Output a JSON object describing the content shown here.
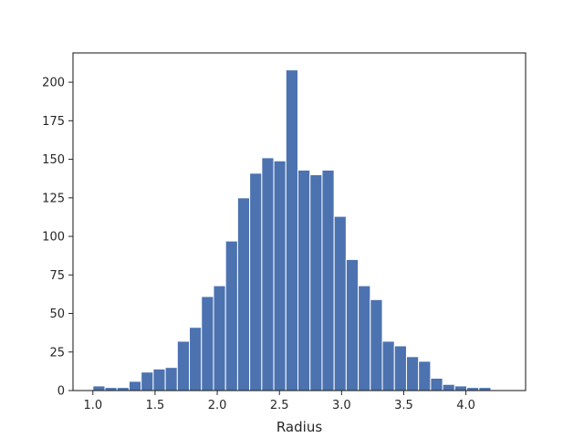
{
  "chart_data": {
    "type": "bar",
    "title": "",
    "xlabel": "Radius",
    "ylabel": "",
    "xlim": [
      0.84,
      4.48
    ],
    "ylim": [
      0,
      219
    ],
    "grid": false,
    "bar_color": "#4c72b0",
    "bin_edges": [
      1.0,
      1.097,
      1.194,
      1.291,
      1.388,
      1.485,
      1.582,
      1.679,
      1.776,
      1.873,
      1.97,
      2.067,
      2.164,
      2.261,
      2.358,
      2.455,
      2.552,
      2.649,
      2.746,
      2.843,
      2.94,
      3.037,
      3.134,
      3.231,
      3.328,
      3.425,
      3.522,
      3.619,
      3.716,
      3.813,
      3.91,
      4.007,
      4.104,
      4.201,
      4.298
    ],
    "values": [
      3,
      2,
      2,
      6,
      12,
      14,
      15,
      32,
      41,
      61,
      68,
      97,
      125,
      141,
      151,
      149,
      208,
      143,
      140,
      143,
      113,
      85,
      68,
      59,
      32,
      29,
      22,
      19,
      8,
      4,
      3,
      2,
      2,
      0
    ],
    "x_ticks": [
      1.0,
      1.5,
      2.0,
      2.5,
      3.0,
      3.5,
      4.0
    ],
    "x_tick_labels": [
      "1.0",
      "1.5",
      "2.0",
      "2.5",
      "3.0",
      "3.5",
      "4.0"
    ],
    "y_ticks": [
      0,
      25,
      50,
      75,
      100,
      125,
      150,
      175,
      200
    ],
    "y_tick_labels": [
      "0",
      "25",
      "50",
      "75",
      "100",
      "125",
      "150",
      "175",
      "200"
    ]
  }
}
